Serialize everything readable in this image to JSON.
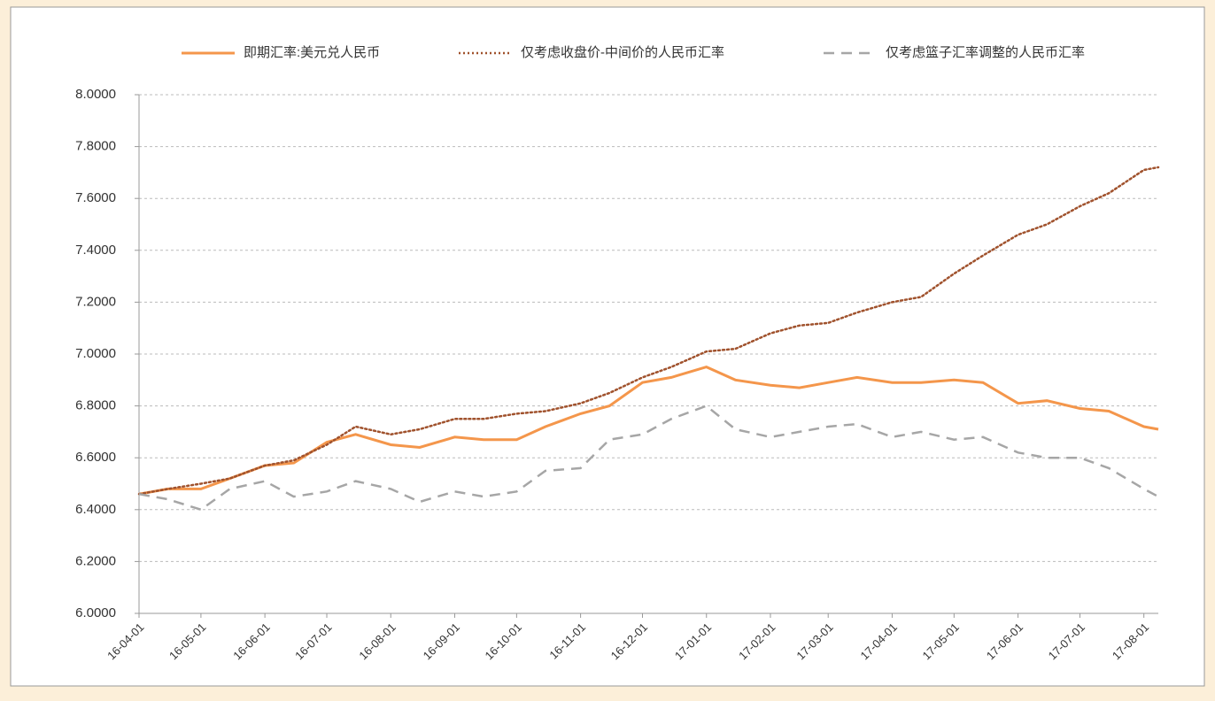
{
  "chart_data": {
    "type": "line",
    "x": [
      "16-04-01",
      "16-04-15",
      "16-05-01",
      "16-05-15",
      "16-06-01",
      "16-06-15",
      "16-07-01",
      "16-07-15",
      "16-08-01",
      "16-08-15",
      "16-09-01",
      "16-09-15",
      "16-10-01",
      "16-10-15",
      "16-11-01",
      "16-11-15",
      "16-12-01",
      "16-12-15",
      "17-01-01",
      "17-01-15",
      "17-02-01",
      "17-02-15",
      "17-03-01",
      "17-03-15",
      "17-04-01",
      "17-04-15",
      "17-05-01",
      "17-05-15",
      "17-06-01",
      "17-06-15",
      "17-07-01",
      "17-07-15",
      "17-08-01",
      "17-08-08"
    ],
    "series": [
      {
        "name": "即期汇率:美元兑人民币",
        "color": "#f4964b",
        "dash": "solid",
        "values": [
          6.46,
          6.48,
          6.48,
          6.52,
          6.57,
          6.58,
          6.66,
          6.69,
          6.65,
          6.64,
          6.68,
          6.67,
          6.67,
          6.72,
          6.77,
          6.8,
          6.89,
          6.91,
          6.95,
          6.9,
          6.88,
          6.87,
          6.89,
          6.91,
          6.89,
          6.89,
          6.9,
          6.89,
          6.81,
          6.82,
          6.79,
          6.78,
          6.72,
          6.71
        ]
      },
      {
        "name": "仅考虑收盘价-中间价的人民币汇率",
        "color": "#a0522d",
        "dash": "dotted",
        "values": [
          6.46,
          6.48,
          6.5,
          6.52,
          6.57,
          6.59,
          6.65,
          6.72,
          6.69,
          6.71,
          6.75,
          6.75,
          6.77,
          6.78,
          6.81,
          6.85,
          6.91,
          6.95,
          7.01,
          7.02,
          7.08,
          7.11,
          7.12,
          7.16,
          7.2,
          7.22,
          7.31,
          7.38,
          7.46,
          7.5,
          7.57,
          7.62,
          7.71,
          7.72
        ]
      },
      {
        "name": "仅考虑篮子汇率调整的人民币汇率",
        "color": "#a6a6a6",
        "dash": "dashed",
        "values": [
          6.46,
          6.44,
          6.4,
          6.48,
          6.51,
          6.45,
          6.47,
          6.51,
          6.48,
          6.43,
          6.47,
          6.45,
          6.47,
          6.55,
          6.56,
          6.67,
          6.69,
          6.75,
          6.8,
          6.71,
          6.68,
          6.7,
          6.72,
          6.73,
          6.68,
          6.7,
          6.67,
          6.68,
          6.62,
          6.6,
          6.6,
          6.56,
          6.48,
          6.45
        ]
      }
    ],
    "xlim": [
      "16-04-01",
      "17-08-08"
    ],
    "xticks": [
      "16-04-01",
      "16-05-01",
      "16-06-01",
      "16-07-01",
      "16-08-01",
      "16-09-01",
      "16-10-01",
      "16-11-01",
      "16-12-01",
      "17-01-01",
      "17-02-01",
      "17-03-01",
      "17-04-01",
      "17-05-01",
      "17-06-01",
      "17-07-01",
      "17-08-01"
    ],
    "ylim": [
      6,
      8
    ],
    "yticks": [
      {
        "value": 6,
        "label": "6.0000"
      },
      {
        "value": 6.2,
        "label": "6.2000"
      },
      {
        "value": 6.4,
        "label": "6.4000"
      },
      {
        "value": 6.6,
        "label": "6.6000"
      },
      {
        "value": 6.8,
        "label": "6.8000"
      },
      {
        "value": 7,
        "label": "7.0000"
      },
      {
        "value": 7.2,
        "label": "7.2000"
      },
      {
        "value": 7.4,
        "label": "7.4000"
      },
      {
        "value": 7.6,
        "label": "7.6000"
      },
      {
        "value": 7.8,
        "label": "7.8000"
      },
      {
        "value": 8,
        "label": "8.0000"
      }
    ],
    "grid": true,
    "legend": "top"
  }
}
